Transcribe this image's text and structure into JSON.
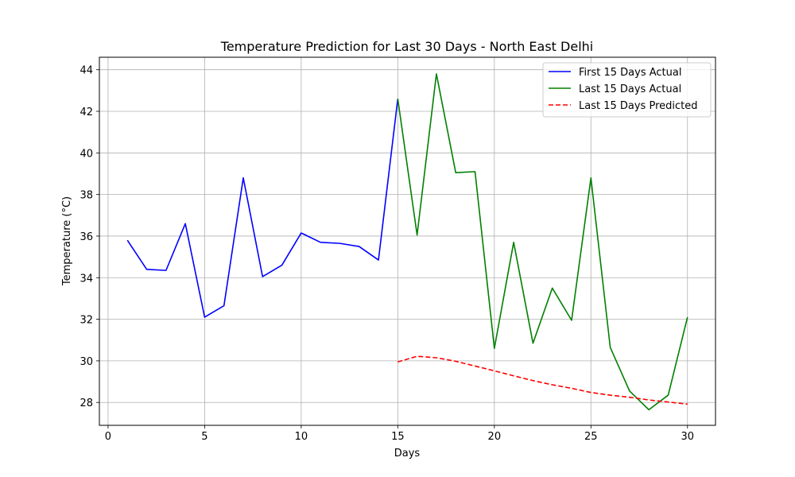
{
  "chart_data": {
    "type": "line",
    "title": "Temperature Prediction for Last 30 Days - North East Delhi",
    "xlabel": "Days",
    "ylabel": "Temperature (°C)",
    "xlim": [
      -0.45,
      31.45
    ],
    "ylim": [
      26.9,
      44.6
    ],
    "xticks": [
      0,
      5,
      10,
      15,
      20,
      25,
      30
    ],
    "yticks": [
      28,
      30,
      32,
      34,
      36,
      38,
      40,
      42,
      44
    ],
    "grid": true,
    "legend_position": "top-right",
    "series": [
      {
        "name": "First 15 Days Actual",
        "color": "#0000ff",
        "dash": "solid",
        "x": [
          1,
          2,
          3,
          4,
          5,
          6,
          7,
          8,
          9,
          10,
          11,
          12,
          13,
          14,
          15
        ],
        "y": [
          35.8,
          34.4,
          34.35,
          36.6,
          32.1,
          32.65,
          38.8,
          34.05,
          34.6,
          36.15,
          35.7,
          35.65,
          35.5,
          34.85,
          42.6
        ]
      },
      {
        "name": "Last 15 Days Actual",
        "color": "#008000",
        "dash": "solid",
        "x": [
          15,
          16,
          17,
          18,
          19,
          20,
          21,
          22,
          23,
          24,
          25,
          26,
          27,
          28,
          29,
          30
        ],
        "y": [
          42.6,
          36.05,
          43.8,
          39.05,
          39.1,
          30.6,
          35.7,
          30.85,
          33.5,
          31.95,
          38.8,
          30.65,
          28.55,
          27.65,
          28.35,
          32.1
        ]
      },
      {
        "name": "Last 15 Days Predicted",
        "color": "#ff0000",
        "dash": "dashed",
        "x": [
          15,
          16,
          17,
          18,
          19,
          20,
          21,
          22,
          23,
          24,
          25,
          26,
          27,
          28,
          29,
          30
        ],
        "y": [
          29.95,
          30.22,
          30.15,
          29.98,
          29.75,
          29.52,
          29.28,
          29.05,
          28.85,
          28.68,
          28.48,
          28.35,
          28.25,
          28.12,
          28.02,
          27.92
        ]
      }
    ]
  }
}
